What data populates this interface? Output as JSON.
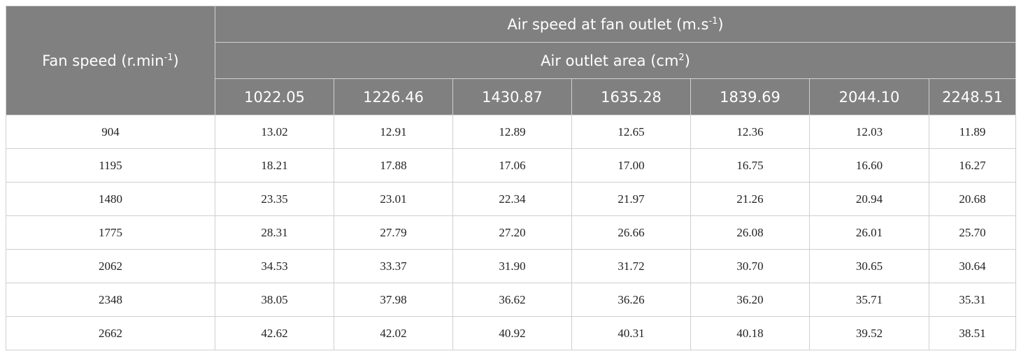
{
  "table": {
    "row_header": {
      "text": "Fan speed (r.min",
      "sup": "-1",
      "end": ")"
    },
    "group_header": {
      "text": "Air speed at fan outlet (m.s",
      "sup": "-1",
      "end": ")"
    },
    "sub_header": {
      "text": "Air outlet area (cm",
      "sup": "2",
      "end": ")"
    },
    "columns": [
      "1022.05",
      "1226.46",
      "1430.87",
      "1635.28",
      "1839.69",
      "2044.10",
      "2248.51"
    ],
    "rows": [
      [
        "904",
        "13.02",
        "12.91",
        "12.89",
        "12.65",
        "12.36",
        "12.03",
        "11.89"
      ],
      [
        "1195",
        "18.21",
        "17.88",
        "17.06",
        "17.00",
        "16.75",
        "16.60",
        "16.27"
      ],
      [
        "1480",
        "23.35",
        "23.01",
        "22.34",
        "21.97",
        "21.26",
        "20.94",
        "20.68"
      ],
      [
        "1775",
        "28.31",
        "27.79",
        "27.20",
        "26.66",
        "26.08",
        "26.01",
        "25.70"
      ],
      [
        "2062",
        "34.53",
        "33.37",
        "31.90",
        "31.72",
        "30.70",
        "30.65",
        "30.64"
      ],
      [
        "2348",
        "38.05",
        "37.98",
        "36.62",
        "36.26",
        "36.20",
        "35.71",
        "35.31"
      ],
      [
        "2662",
        "42.62",
        "42.02",
        "40.92",
        "40.31",
        "40.18",
        "39.52",
        "38.51"
      ]
    ]
  }
}
